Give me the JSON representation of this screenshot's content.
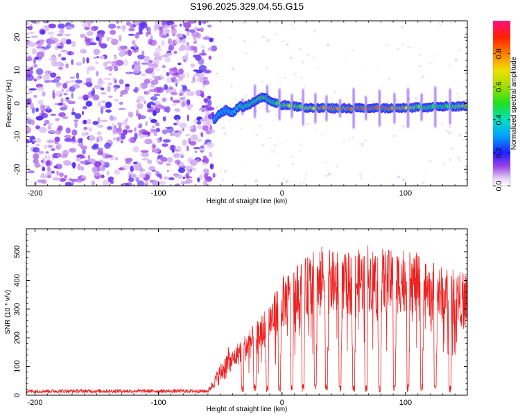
{
  "title": "S196.2025.329.04.55.G15",
  "chart_data": [
    {
      "type": "heatmap",
      "name": "spectrogram",
      "xlabel": "Height of straight line (km)",
      "ylabel": "Frequency (Hz)",
      "xlim": [
        -207,
        150
      ],
      "ylim": [
        -25,
        25
      ],
      "x_ticks": [
        -200,
        -100,
        0,
        100
      ],
      "x_tick_labels": [
        "-200",
        "-100",
        "0",
        "100"
      ],
      "y_ticks": [
        -20,
        -10,
        0,
        10,
        20
      ],
      "y_tick_labels": [
        "-20",
        "-10",
        "0",
        "10",
        "20"
      ],
      "noise_region_x": [
        -207,
        -55
      ],
      "signal_track": {
        "x": [
          -55,
          -50,
          -45,
          -40,
          -35,
          -30,
          -25,
          -20,
          -15,
          -10,
          -5,
          0,
          5,
          10,
          15,
          20,
          30,
          40,
          50,
          60,
          70,
          80,
          90,
          100,
          110,
          120,
          130,
          140,
          150
        ],
        "freq": [
          -5,
          -3,
          -2,
          -3,
          -1,
          -1,
          0,
          1,
          2,
          1,
          0,
          -0.5,
          -0.5,
          -1,
          -1,
          -1.5,
          -1.5,
          -1.5,
          -1.5,
          -1.5,
          -1.5,
          -1.5,
          -1.5,
          -1.5,
          -1.2,
          -1.2,
          -1,
          -1,
          -0.8
        ],
        "amplitude": [
          0.35,
          0.3,
          0.3,
          0.35,
          0.4,
          0.45,
          0.45,
          0.5,
          0.55,
          0.45,
          0.5,
          0.55,
          0.6,
          0.6,
          0.55,
          0.65,
          0.8,
          0.8,
          0.8,
          0.85,
          0.85,
          0.85,
          0.8,
          0.75,
          0.55,
          0.5,
          0.5,
          0.55,
          0.7
        ]
      },
      "colorbar": {
        "label": "Normalized spectral amplitude",
        "range": [
          0,
          1
        ],
        "ticks": [
          0,
          0.2,
          0.4,
          0.6,
          0.8
        ],
        "tick_labels": [
          "0.0",
          "0.2",
          "0.4",
          "0.6",
          "0.8"
        ]
      }
    },
    {
      "type": "line",
      "name": "snr",
      "xlabel": "Height of straight line (km)",
      "ylabel": "SNR (10 * v/v)",
      "xlim": [
        -207,
        150
      ],
      "ylim": [
        0,
        580
      ],
      "x_ticks": [
        -200,
        -100,
        0,
        100
      ],
      "x_tick_labels": [
        "-200",
        "-100",
        "0",
        "100"
      ],
      "y_ticks": [
        0,
        100,
        200,
        300,
        400,
        500
      ],
      "y_tick_labels": [
        "0",
        "100",
        "200",
        "300",
        "400",
        "500"
      ],
      "series": [
        {
          "name": "SNR",
          "color": "#ee2020",
          "envelope_x": [
            -207,
            -60,
            -42,
            -35,
            -25,
            -15,
            -5,
            0,
            10,
            20,
            30,
            40,
            50,
            60,
            70,
            80,
            90,
            100,
            110,
            120,
            130,
            140,
            150
          ],
          "envelope_y": [
            15,
            15,
            130,
            170,
            210,
            260,
            330,
            370,
            400,
            430,
            470,
            450,
            440,
            450,
            470,
            460,
            450,
            470,
            440,
            420,
            400,
            390,
            380
          ],
          "dropout_x": [
            -32,
            -22,
            -12,
            -2,
            8,
            17,
            27,
            36,
            47,
            58,
            68,
            79,
            91,
            102,
            113,
            124,
            136
          ],
          "dropout_y": 25
        }
      ]
    }
  ]
}
